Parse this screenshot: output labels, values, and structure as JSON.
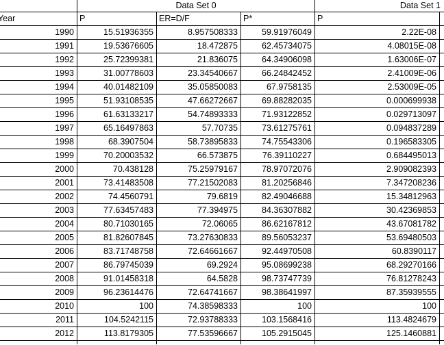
{
  "colors": {
    "border": "#000000",
    "background": "#ffffff",
    "text": "#000000"
  },
  "table": {
    "group_headers": {
      "ds0": "Data Set 0",
      "ds1": "Data Set 1"
    },
    "column_headers": [
      "Year",
      "P",
      "ER=D/F",
      "P*",
      "P"
    ],
    "rows": [
      [
        "1990",
        "15.51936355",
        "8.957508333",
        "59.91976049",
        "2.22E-08"
      ],
      [
        "1991",
        "19.53676605",
        "18.472875",
        "62.45734075",
        "4.08015E-08"
      ],
      [
        "1992",
        "25.72399381",
        "21.836075",
        "64.34906098",
        "1.63006E-07"
      ],
      [
        "1993",
        "31.00778603",
        "23.34540667",
        "66.24842452",
        "2.41009E-06"
      ],
      [
        "1994",
        "40.01482109",
        "35.05850083",
        "67.9758135",
        "2.53009E-05"
      ],
      [
        "1995",
        "51.93108535",
        "47.66272667",
        "69.88282035",
        "0.000699938"
      ],
      [
        "1996",
        "61.63133217",
        "54.74893333",
        "71.93122852",
        "0.029713097"
      ],
      [
        "1997",
        "65.16497863",
        "57.70735",
        "73.61275761",
        "0.094837289"
      ],
      [
        "1998",
        "68.3907504",
        "58.73895833",
        "74.75543306",
        "0.196583305"
      ],
      [
        "1999",
        "70.20003532",
        "66.573875",
        "76.39110227",
        "0.684495013"
      ],
      [
        "2000",
        "70.438128",
        "75.25979167",
        "78.97072076",
        "2.909082393"
      ],
      [
        "2001",
        "73.41483508",
        "77.21502083",
        "81.20256846",
        "7.347208236"
      ],
      [
        "2002",
        "74.4560791",
        "79.6819",
        "82.49046688",
        "15.34812963"
      ],
      [
        "2003",
        "77.63457483",
        "77.394975",
        "84.36307882",
        "30.42369853"
      ],
      [
        "2004",
        "80.71030165",
        "72.06065",
        "86.62167812",
        "43.67081782"
      ],
      [
        "2005",
        "81.82607845",
        "73.27630833",
        "89.56053237",
        "53.69480503"
      ],
      [
        "2006",
        "83.71748758",
        "72.64661667",
        "92.44970508",
        "60.8390117"
      ],
      [
        "2007",
        "86.79745039",
        "69.2924",
        "95.08699238",
        "68.29270166"
      ],
      [
        "2008",
        "91.01458318",
        "64.5828",
        "98.73747739",
        "76.81278243"
      ],
      [
        "2009",
        "96.23614476",
        "72.64741667",
        "98.38641997",
        "87.35939555"
      ],
      [
        "2010",
        "100",
        "74.38598333",
        "100",
        "100"
      ],
      [
        "2011",
        "104.5242115",
        "72.93788333",
        "103.1568416",
        "113.4824679"
      ],
      [
        "2012",
        "113.8179305",
        "77.53596667",
        "105.2915045",
        "125.1460881"
      ]
    ]
  }
}
